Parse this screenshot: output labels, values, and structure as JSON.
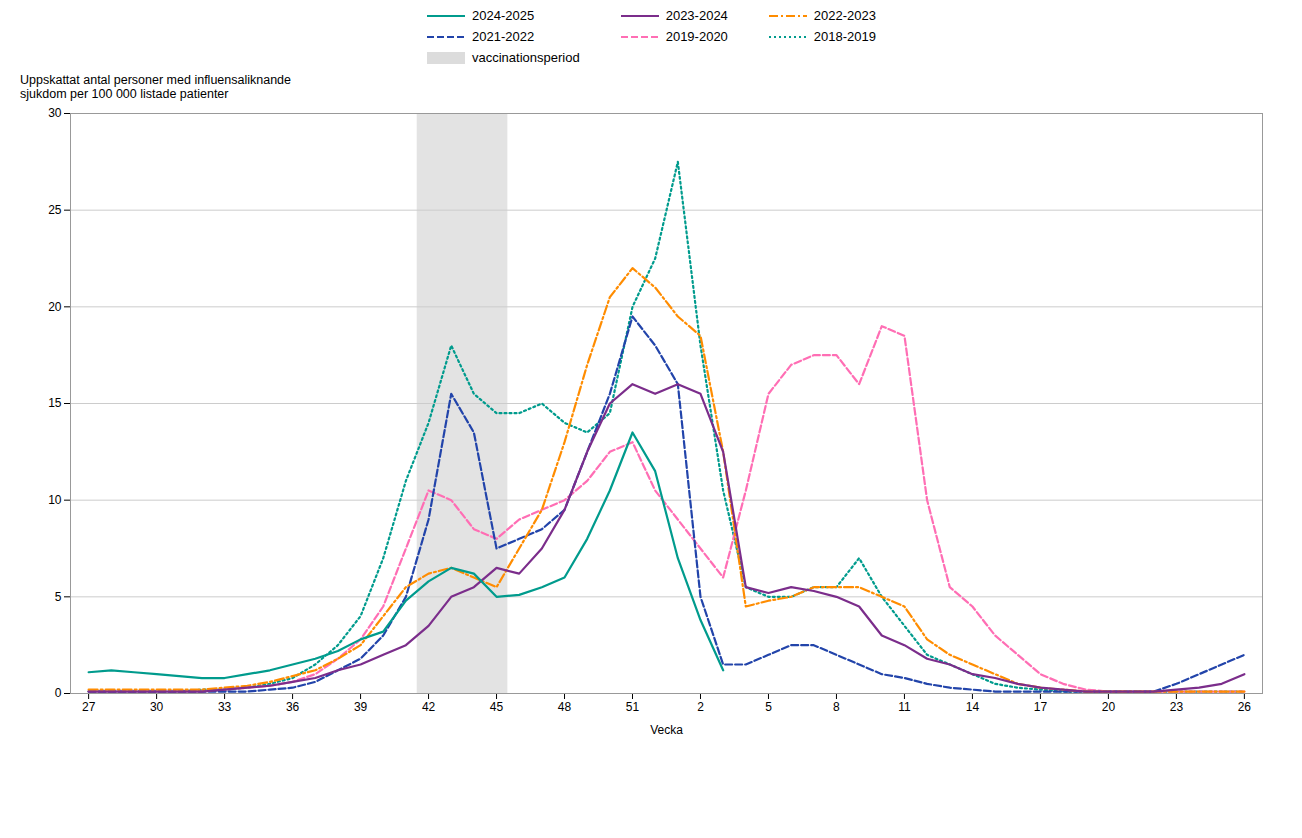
{
  "chart_data": {
    "type": "line",
    "x_label": "Vecka",
    "y_label": "Uppskattat antal personer med influensaliknande\nsjukdom per 100 000 listade patienter",
    "categories": [
      "27",
      null,
      null,
      "30",
      null,
      null,
      "33",
      null,
      null,
      "36",
      null,
      null,
      "39",
      null,
      null,
      "42",
      null,
      null,
      "45",
      null,
      null,
      "48",
      null,
      null,
      "51",
      null,
      null,
      "2",
      null,
      null,
      "5",
      null,
      null,
      "8",
      null,
      null,
      "11",
      null,
      null,
      "14",
      null,
      null,
      "17",
      null,
      null,
      "20",
      null,
      null,
      "23",
      null,
      null,
      "26"
    ],
    "ylim": [
      0,
      30
    ],
    "yticks": [
      0,
      5,
      10,
      15,
      20,
      25,
      30
    ],
    "grid": true,
    "legend": "top",
    "spans": [
      {
        "name": "vaccinationsperiod",
        "from": "42",
        "to": "45",
        "color": "#DCDCDC"
      }
    ],
    "series": [
      {
        "name": "2024-2025",
        "color": "#009B8D",
        "line_style": "solid",
        "values": [
          1.1,
          1.2,
          1.1,
          1.0,
          0.9,
          0.8,
          0.8,
          1.0,
          1.2,
          1.5,
          1.8,
          2.2,
          2.8,
          3.2,
          4.8,
          5.8,
          6.5,
          6.2,
          5.0,
          5.1,
          5.5,
          6.0,
          8.0,
          10.5,
          13.5,
          11.5,
          7.0,
          3.8,
          1.2,
          null,
          null,
          null,
          null,
          null,
          null,
          null,
          null,
          null,
          null,
          null,
          null,
          null,
          null,
          null,
          null,
          null,
          null,
          null,
          null,
          null,
          null,
          null
        ]
      },
      {
        "name": "2023-2024",
        "color": "#7B2D8B",
        "line_style": "solid",
        "values": [
          0.1,
          0.1,
          0.1,
          0.1,
          0.1,
          0.1,
          0.2,
          0.3,
          0.4,
          0.6,
          0.8,
          1.2,
          1.5,
          2.0,
          2.5,
          3.5,
          5.0,
          5.5,
          6.5,
          6.2,
          7.5,
          9.5,
          12.5,
          15.0,
          16.0,
          15.5,
          16.0,
          15.5,
          12.5,
          5.5,
          5.2,
          5.5,
          5.3,
          5.0,
          4.5,
          3.0,
          2.5,
          1.8,
          1.5,
          1.0,
          0.8,
          0.5,
          0.3,
          0.2,
          0.1,
          0.1,
          0.1,
          0.1,
          0.2,
          0.3,
          0.5,
          1.0
        ]
      },
      {
        "name": "2022-2023",
        "color": "#FF8C00",
        "line_style": "dashdot",
        "values": [
          0.2,
          0.2,
          0.2,
          0.2,
          0.2,
          0.2,
          0.3,
          0.4,
          0.6,
          0.9,
          1.2,
          1.8,
          2.5,
          4.0,
          5.5,
          6.2,
          6.5,
          6.0,
          5.5,
          7.5,
          9.5,
          13.0,
          17.0,
          20.5,
          22.0,
          21.0,
          19.5,
          18.5,
          12.5,
          4.5,
          4.8,
          5.0,
          5.5,
          5.5,
          5.5,
          5.0,
          4.5,
          2.8,
          2.0,
          1.5,
          1.0,
          0.5,
          0.3,
          0.2,
          0.1,
          0.1,
          0.1,
          0.1,
          0.1,
          0.1,
          0.1,
          0.1
        ]
      },
      {
        "name": "2021-2022",
        "color": "#2244AA",
        "line_style": "dashed",
        "values": [
          0.1,
          0.1,
          0.1,
          0.1,
          0.1,
          0.1,
          0.1,
          0.1,
          0.2,
          0.3,
          0.6,
          1.2,
          1.8,
          3.0,
          5.0,
          9.0,
          15.5,
          13.5,
          7.5,
          8.0,
          8.5,
          9.5,
          12.5,
          15.5,
          19.5,
          18.0,
          16.0,
          5.0,
          1.5,
          1.5,
          2.0,
          2.5,
          2.5,
          2.0,
          1.5,
          1.0,
          0.8,
          0.5,
          0.3,
          0.2,
          0.1,
          0.1,
          0.1,
          0.1,
          0.1,
          0.1,
          0.1,
          0.1,
          0.5,
          1.0,
          1.5,
          2.0
        ]
      },
      {
        "name": "2019-2020",
        "color": "#FF6EB4",
        "line_style": "dashed",
        "values": [
          0.1,
          0.1,
          0.1,
          0.1,
          0.1,
          0.1,
          0.2,
          0.3,
          0.4,
          0.6,
          1.0,
          1.8,
          2.8,
          4.5,
          7.5,
          10.5,
          10.0,
          8.5,
          8.0,
          9.0,
          9.5,
          10.0,
          11.0,
          12.5,
          13.0,
          10.5,
          9.0,
          7.5,
          6.0,
          10.5,
          15.5,
          17.0,
          17.5,
          17.5,
          16.0,
          19.0,
          18.5,
          10.0,
          5.5,
          4.5,
          3.0,
          2.0,
          1.0,
          0.5,
          0.2,
          0.1,
          0.1,
          0.1,
          0.1,
          0.1,
          0.1,
          0.1
        ]
      },
      {
        "name": "2018-2019",
        "color": "#009B8D",
        "line_style": "dotted",
        "values": [
          0.1,
          0.1,
          0.1,
          0.1,
          0.1,
          0.2,
          0.2,
          0.3,
          0.5,
          0.8,
          1.5,
          2.5,
          4.0,
          7.0,
          11.0,
          14.0,
          18.0,
          15.5,
          14.5,
          14.5,
          15.0,
          14.0,
          13.5,
          14.5,
          20.0,
          22.5,
          27.5,
          18.0,
          10.5,
          5.5,
          5.0,
          5.0,
          5.5,
          5.5,
          7.0,
          5.0,
          3.5,
          2.0,
          1.5,
          1.0,
          0.5,
          0.3,
          0.2,
          0.1,
          0.1,
          0.1,
          0.1,
          0.1,
          0.1,
          0.1,
          0.1,
          0.1
        ]
      }
    ]
  }
}
